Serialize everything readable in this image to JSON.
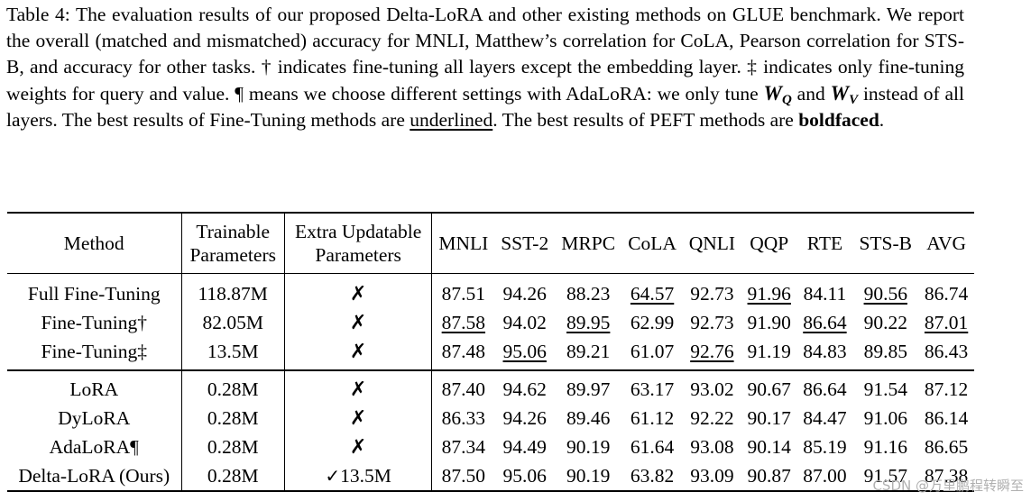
{
  "caption": {
    "part1": "Table 4: The evaluation results of our proposed Delta-LoRA and other existing methods on GLUE benchmark.  We report the overall (matched and mismatched) accuracy for MNLI, Matthew’s correlation for CoLA, Pearson correlation for STS-B, and accuracy for other tasks.  † indicates fine-tuning all layers except the embedding layer. ‡ indicates only fine-tuning weights for query and value. ¶ means we choose different settings with AdaLoRA: we only tune ",
    "wq_base": "W",
    "wq_sub": "Q",
    "and_word": " and ",
    "wv_base": "W",
    "wv_sub": "V",
    "part2": " instead of all layers. The best results of Fine-Tuning methods are ",
    "underlined_word": "underlined",
    "part3": ". The best results of PEFT methods are ",
    "bold_word": "boldfaced",
    "part4": "."
  },
  "table": {
    "headers": {
      "method": "Method",
      "trainable_1": "Trainable",
      "trainable_2": "Parameters",
      "extra_1": "Extra Updatable",
      "extra_2": "Parameters",
      "metrics": [
        "MNLI",
        "SST-2",
        "MRPC",
        "CoLA",
        "QNLI",
        "QQP",
        "RTE",
        "STS-B",
        "AVG"
      ]
    },
    "fine_tuning_rows": [
      {
        "method": "Full Fine-Tuning",
        "trainable": "118.87M",
        "extra": "✗",
        "values": [
          "87.51",
          "94.26",
          "88.23",
          "64.57",
          "92.73",
          "91.96",
          "84.11",
          "90.56",
          "86.74"
        ]
      },
      {
        "method": "Fine-Tuning†",
        "trainable": "82.05M",
        "extra": "✗",
        "values": [
          "87.58",
          "94.02",
          "89.95",
          "62.99",
          "92.73",
          "91.90",
          "86.64",
          "90.22",
          "87.01"
        ]
      },
      {
        "method": "Fine-Tuning‡",
        "trainable": "13.5M",
        "extra": "✗",
        "values": [
          "87.48",
          "95.06",
          "89.21",
          "61.07",
          "92.76",
          "91.19",
          "84.83",
          "89.85",
          "86.43"
        ]
      }
    ],
    "peft_rows": [
      {
        "method": "LoRA",
        "trainable": "0.28M",
        "extra": "✗",
        "values": [
          "87.40",
          "94.62",
          "89.97",
          "63.17",
          "93.02",
          "90.67",
          "86.64",
          "91.54",
          "87.12"
        ]
      },
      {
        "method": "DyLoRA",
        "trainable": "0.28M",
        "extra": "✗",
        "values": [
          "86.33",
          "94.26",
          "89.46",
          "61.12",
          "92.22",
          "90.17",
          "84.47",
          "91.06",
          "86.14"
        ]
      },
      {
        "method": "AdaLoRA¶",
        "trainable": "0.28M",
        "extra": "✗",
        "values": [
          "87.34",
          "94.49",
          "90.19",
          "61.64",
          "93.08",
          "90.14",
          "85.19",
          "91.16",
          "86.65"
        ]
      },
      {
        "method": "Delta-LoRA (Ours)",
        "trainable": "0.28M",
        "extra_mark": "✓",
        "extra_value": "13.5M",
        "values": [
          "87.50",
          "95.06",
          "90.19",
          "63.82",
          "93.09",
          "90.87",
          "87.00",
          "91.57",
          "87.38"
        ]
      }
    ]
  },
  "watermark": "CSDN @万里鹏程转瞬至"
}
